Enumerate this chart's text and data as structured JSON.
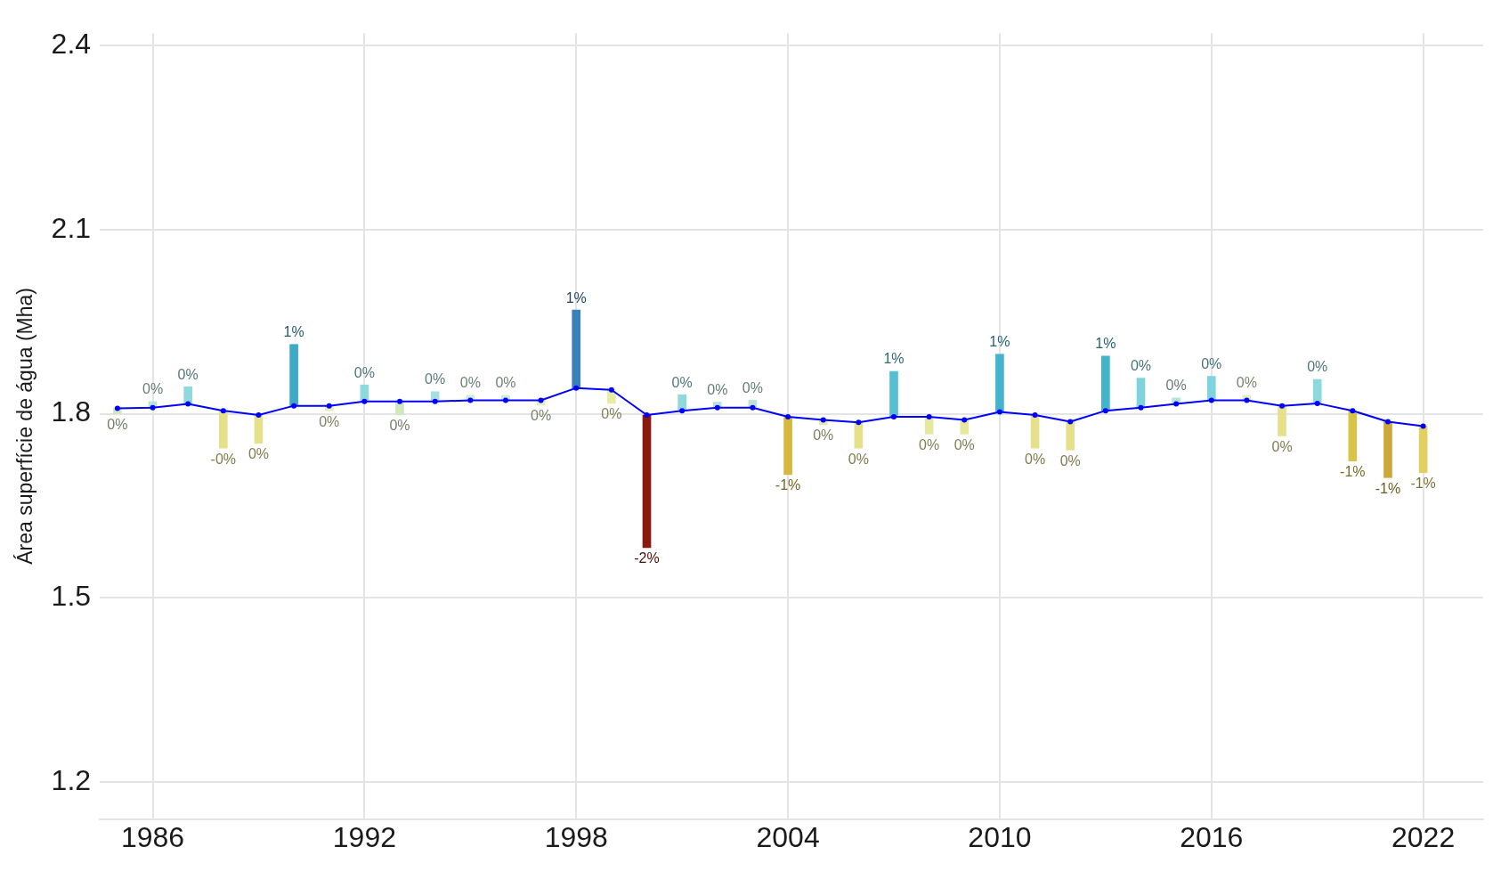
{
  "chart_data": {
    "type": "line",
    "ylabel": "Área superfície de água (Mha)",
    "x": [
      1985,
      1986,
      1987,
      1988,
      1989,
      1990,
      1991,
      1992,
      1993,
      1994,
      1995,
      1996,
      1997,
      1998,
      1999,
      2000,
      2001,
      2002,
      2003,
      2004,
      2005,
      2006,
      2007,
      2008,
      2009,
      2010,
      2011,
      2012,
      2013,
      2014,
      2015,
      2016,
      2017,
      2018,
      2019,
      2020,
      2021,
      2022
    ],
    "xlim": [
      1984.5,
      2023.7
    ],
    "xticks": [
      1986,
      1992,
      1998,
      2004,
      2010,
      2016,
      2022
    ],
    "ylim": [
      1.14,
      2.42
    ],
    "yticks": [
      1.2,
      1.5,
      1.8,
      2.1,
      2.4
    ],
    "grid": true,
    "series": [
      {
        "type": "bar",
        "base": [
          1.809,
          1.81,
          1.816,
          1.805,
          1.798,
          1.813,
          1.813,
          1.82,
          1.82,
          1.82,
          1.822,
          1.822,
          1.822,
          1.842,
          1.839,
          1.798,
          1.805,
          1.81,
          1.81,
          1.795,
          1.79,
          1.786,
          1.795,
          1.795,
          1.79,
          1.803,
          1.798,
          1.787,
          1.805,
          1.81,
          1.816,
          1.822,
          1.822,
          1.813,
          1.817,
          1.805,
          1.787,
          1.78
        ],
        "values": [
          -0.009,
          0.01,
          0.028,
          -0.061,
          -0.046,
          0.1,
          -0.008,
          0.027,
          -0.022,
          0.016,
          0.008,
          0.008,
          -0.008,
          0.127,
          -0.022,
          -0.216,
          0.026,
          0.009,
          0.012,
          -0.094,
          -0.008,
          -0.042,
          0.074,
          -0.028,
          -0.023,
          0.094,
          -0.054,
          -0.046,
          0.089,
          0.048,
          0.01,
          0.039,
          0.008,
          -0.049,
          0.039,
          -0.082,
          -0.091,
          -0.076
        ],
        "colors": [
          "#cfe8c0",
          "#b8e3d8",
          "#8fd8dc",
          "#e6e08a",
          "#e6e08a",
          "#3fa9c9",
          "#e8ecb0",
          "#8fd8dc",
          "#cfe8c0",
          "#a8dfe0",
          "#c8ecd8",
          "#c8ecd8",
          "#dfeec0",
          "#3a80bb",
          "#e8eca0",
          "#8b1a0e",
          "#8fd8dc",
          "#b8e3d8",
          "#b8e3d8",
          "#d4b840",
          "#e6e8b0",
          "#e6e08a",
          "#56bfd2",
          "#e6e8a0",
          "#e6e8a0",
          "#44b3cc",
          "#e6e08a",
          "#e6e08a",
          "#44b3cc",
          "#7fd3dc",
          "#b8e3d8",
          "#7fd3dc",
          "#dfeec0",
          "#e6e08a",
          "#8fd8dc",
          "#d9c44a",
          "#caa83a",
          "#e0d060"
        ]
      },
      {
        "color": "#0000ff",
        "marker": "circle",
        "values": [
          1.809,
          1.81,
          1.816,
          1.805,
          1.798,
          1.813,
          1.813,
          1.82,
          1.82,
          1.82,
          1.822,
          1.822,
          1.822,
          1.842,
          1.839,
          1.798,
          1.805,
          1.81,
          1.81,
          1.795,
          1.79,
          1.786,
          1.795,
          1.795,
          1.79,
          1.803,
          1.798,
          1.787,
          1.805,
          1.81,
          1.816,
          1.822,
          1.822,
          1.813,
          1.817,
          1.805,
          1.787,
          1.78
        ]
      }
    ],
    "annotations": [
      "0%",
      "0%",
      "0%",
      "-0%",
      "0%",
      "1%",
      "0%",
      "0%",
      "0%",
      "0%",
      "0%",
      "0%",
      "0%",
      "1%",
      "0%",
      "-2%",
      "0%",
      "0%",
      "0%",
      "-1%",
      "0%",
      "0%",
      "1%",
      "0%",
      "0%",
      "1%",
      "0%",
      "0%",
      "1%",
      "0%",
      "0%",
      "0%",
      "0%",
      "0%",
      "0%",
      "-1%",
      "-1%",
      "-1%"
    ]
  }
}
